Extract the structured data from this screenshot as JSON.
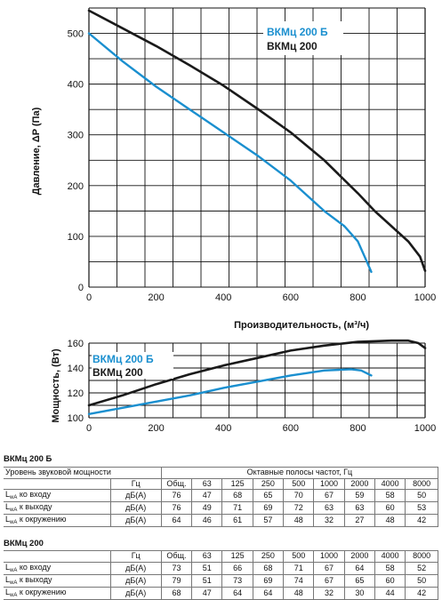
{
  "colors": {
    "black_series": "#1a1a1a",
    "blue_series": "#1a8fcf",
    "grid": "#111111"
  },
  "chart_data": [
    {
      "type": "line",
      "xlabel": "Производительность, (м³/ч)",
      "ylabel": "Давление, ΔP (Па)",
      "xlim": [
        0,
        1000
      ],
      "ylim": [
        0,
        550
      ],
      "xticks": [
        0,
        200,
        400,
        600,
        800,
        1000
      ],
      "yticks": [
        0,
        100,
        200,
        300,
        400,
        500
      ],
      "grid": true,
      "legend_position": "top-right",
      "series": [
        {
          "name": "ВКМц 200 Б",
          "color": "#1a8fcf",
          "x": [
            0,
            100,
            200,
            300,
            400,
            500,
            600,
            700,
            760,
            800,
            820,
            840
          ],
          "y": [
            500,
            445,
            395,
            350,
            305,
            260,
            210,
            150,
            120,
            90,
            60,
            30
          ]
        },
        {
          "name": "ВКМц 200",
          "color": "#1a1a1a",
          "x": [
            0,
            100,
            200,
            300,
            400,
            500,
            600,
            700,
            800,
            850,
            900,
            950,
            985,
            1000
          ],
          "y": [
            545,
            510,
            475,
            437,
            397,
            352,
            305,
            250,
            185,
            150,
            120,
            90,
            60,
            32
          ]
        }
      ]
    },
    {
      "type": "line",
      "xlabel": "",
      "ylabel": "Мощность, (Вт)",
      "xlim": [
        0,
        1000
      ],
      "ylim": [
        100,
        160
      ],
      "xticks": [
        0,
        200,
        400,
        600,
        800,
        1000
      ],
      "yticks": [
        100,
        120,
        140,
        160
      ],
      "grid": true,
      "legend_position": "top-left",
      "series": [
        {
          "name": "ВКМц 200 Б",
          "color": "#1a8fcf",
          "x": [
            0,
            100,
            200,
            300,
            400,
            500,
            600,
            700,
            780,
            810,
            840
          ],
          "y": [
            103,
            108,
            113,
            118,
            124,
            129,
            134,
            138,
            139,
            138,
            134
          ]
        },
        {
          "name": "ВКМц 200",
          "color": "#1a1a1a",
          "x": [
            0,
            100,
            200,
            300,
            400,
            500,
            600,
            700,
            800,
            900,
            950,
            980,
            1000
          ],
          "y": [
            110,
            118,
            127,
            135,
            142,
            148,
            154,
            158,
            161,
            162,
            162,
            160,
            156
          ]
        }
      ]
    }
  ],
  "tables": [
    {
      "title": "ВКМц 200 Б",
      "header_left": "Уровень звуковой мощности",
      "header_right": "Октавные полосы частот, Гц",
      "unit_row": {
        "label": "",
        "unit": "Гц",
        "cols": [
          "Общ.",
          "63",
          "125",
          "250",
          "500",
          "1000",
          "2000",
          "4000",
          "8000"
        ]
      },
      "rows": [
        {
          "sub": "wA",
          "label": " ко входу",
          "unit": "дБ(А)",
          "values": [
            "76",
            "47",
            "68",
            "65",
            "70",
            "67",
            "59",
            "58",
            "50"
          ]
        },
        {
          "sub": "wA",
          "label": " к выходу",
          "unit": "дБ(А)",
          "values": [
            "76",
            "49",
            "71",
            "69",
            "72",
            "63",
            "63",
            "60",
            "53"
          ]
        },
        {
          "sub": "wA",
          "label": " к окружению",
          "unit": "дБ(А)",
          "values": [
            "64",
            "46",
            "61",
            "57",
            "48",
            "32",
            "27",
            "48",
            "42"
          ]
        }
      ]
    },
    {
      "title": "ВКМц 200",
      "unit_row": {
        "label": "",
        "unit": "Гц",
        "cols": [
          "Общ.",
          "63",
          "125",
          "250",
          "500",
          "1000",
          "2000",
          "4000",
          "8000"
        ]
      },
      "rows": [
        {
          "sub": "wA",
          "label": " ко входу",
          "unit": "дБ(А)",
          "values": [
            "73",
            "51",
            "66",
            "68",
            "71",
            "67",
            "64",
            "58",
            "52"
          ]
        },
        {
          "sub": "wA",
          "label": " к выходу",
          "unit": "дБ(А)",
          "values": [
            "79",
            "51",
            "73",
            "69",
            "74",
            "67",
            "65",
            "60",
            "50"
          ]
        },
        {
          "sub": "wA",
          "label": " к окружению",
          "unit": "дБ(А)",
          "values": [
            "68",
            "47",
            "64",
            "64",
            "48",
            "32",
            "30",
            "44",
            "42"
          ]
        }
      ]
    }
  ],
  "row_letter": "L"
}
